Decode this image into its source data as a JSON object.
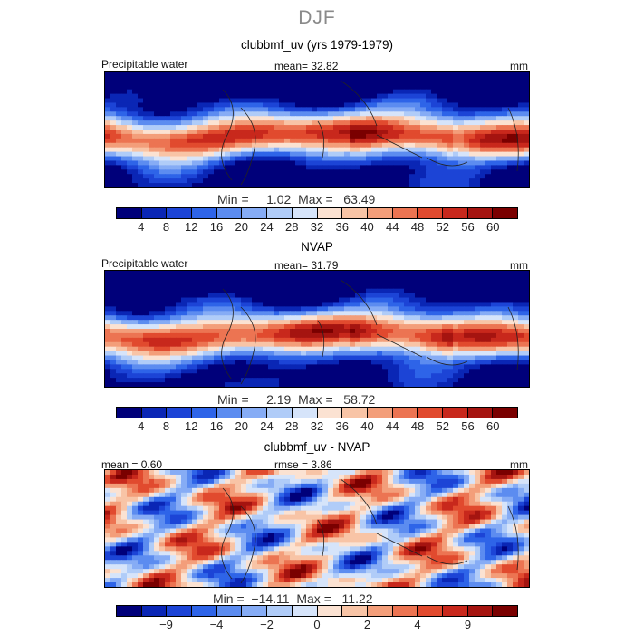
{
  "figure": {
    "title": "DJF",
    "panels": [
      {
        "title": "clubbmf_uv (yrs 1979-1979)",
        "left_label": "Precipitable water",
        "center_label": "mean=   32.82",
        "right_label": "mm",
        "minmax": "Min =     1.02  Max =   63.49",
        "colorbar_ticks": [
          "4",
          "8",
          "12",
          "16",
          "20",
          "24",
          "28",
          "32",
          "36",
          "40",
          "44",
          "48",
          "52",
          "56",
          "60"
        ]
      },
      {
        "title": "NVAP",
        "left_label": "Precipitable water",
        "center_label": "mean=   31.79",
        "right_label": "mm",
        "minmax": "Min =     2.19  Max =   58.72",
        "colorbar_ticks": [
          "4",
          "8",
          "12",
          "16",
          "20",
          "24",
          "28",
          "32",
          "36",
          "40",
          "44",
          "48",
          "52",
          "56",
          "60"
        ]
      },
      {
        "title": "clubbmf_uv - NVAP",
        "left_label": "mean =    0.60",
        "center_label": "rmse =    3.86",
        "right_label": "mm",
        "minmax": "Min =  −14.11  Max =   11.22",
        "colorbar_ticks": [
          "−9",
          "−4",
          "−2",
          "0",
          "2",
          "4",
          "9"
        ]
      }
    ]
  },
  "chart_data": [
    {
      "type": "heatmap",
      "title": "clubbmf_uv (yrs 1979-1979)",
      "variable": "Precipitable water",
      "units": "mm",
      "mean": 32.82,
      "min": 1.02,
      "max": 63.49,
      "levels": [
        4,
        8,
        12,
        16,
        20,
        24,
        28,
        32,
        36,
        40,
        44,
        48,
        52,
        56,
        60
      ]
    },
    {
      "type": "heatmap",
      "title": "NVAP",
      "variable": "Precipitable water",
      "units": "mm",
      "mean": 31.79,
      "min": 2.19,
      "max": 58.72,
      "levels": [
        4,
        8,
        12,
        16,
        20,
        24,
        28,
        32,
        36,
        40,
        44,
        48,
        52,
        56,
        60
      ]
    },
    {
      "type": "heatmap",
      "title": "clubbmf_uv - NVAP",
      "units": "mm",
      "mean": 0.6,
      "rmse": 3.86,
      "min": -14.11,
      "max": 11.22,
      "levels": [
        -9,
        -4,
        -2,
        0,
        2,
        4,
        9
      ]
    }
  ],
  "colors": {
    "scale_main": [
      "#00007a",
      "#0a26b5",
      "#1c44d6",
      "#2e64e8",
      "#5c8cf0",
      "#86acf5",
      "#b0ccf8",
      "#d6e4fa",
      "#fbe2d2",
      "#f8c4a6",
      "#f39e7a",
      "#ec7452",
      "#e14a2e",
      "#c8281c",
      "#a51410",
      "#7a0000"
    ],
    "scale_diff": [
      "#00007a",
      "#0a26b5",
      "#1c44d6",
      "#2e64e8",
      "#5c8cf0",
      "#86acf5",
      "#b0ccf8",
      "#d6e4fa",
      "#fbe2d2",
      "#f8c4a6",
      "#f39e7a",
      "#ec7452",
      "#e14a2e",
      "#c8281c",
      "#a51410",
      "#7a0000"
    ]
  }
}
